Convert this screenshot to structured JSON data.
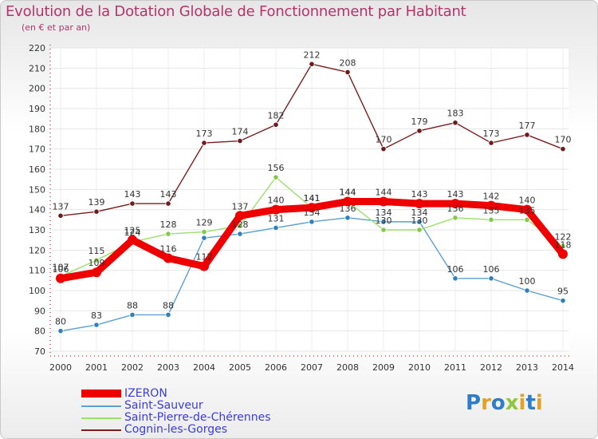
{
  "title": "Evolution de la Dotation Globale de Fonctionnement par Habitant",
  "subtitle": "(en € et par an)",
  "logo": [
    "P",
    "r",
    "o",
    "x",
    "i",
    "t",
    "i"
  ],
  "logo_colors": [
    "#2f7dc6",
    "#e3a125",
    "#2f7dc6",
    "#8dc63f",
    "#e3a125",
    "#2f7dc6",
    "#e3a125"
  ],
  "chart_data": {
    "type": "line",
    "title": "Evolution de la Dotation Globale de Fonctionnement par Habitant",
    "ylabel": "(en € et par an)",
    "xlabel": "",
    "x": [
      "2000",
      "2001",
      "2002",
      "2003",
      "2004",
      "2005",
      "2006",
      "2007",
      "2008",
      "2009",
      "2010",
      "2011",
      "2012",
      "2013",
      "2014"
    ],
    "ylim": [
      70,
      220
    ],
    "yticks": [
      "70",
      "80",
      "90",
      "100",
      "110",
      "120",
      "130",
      "140",
      "150",
      "160",
      "170",
      "180",
      "190",
      "200",
      "210",
      "220"
    ],
    "grid": true,
    "legend_position": "bottom-left",
    "series": [
      {
        "name": "Cognin-les-Gorges",
        "color": "#7a1e1e",
        "marker": "#6e1a1a",
        "values": [
          137,
          139,
          143,
          143,
          173,
          174,
          182,
          212,
          208,
          170,
          179,
          183,
          173,
          177,
          170
        ]
      },
      {
        "name": "Saint-Sauveur",
        "color": "#5d9fd0",
        "marker": "#2e7fc0",
        "values": [
          80,
          83,
          88,
          88,
          126,
          128,
          131,
          134,
          136,
          134,
          134,
          106,
          106,
          100,
          95
        ]
      },
      {
        "name": "Saint-Pierre-de-Chérennes",
        "color": "#9ae06a",
        "marker": "#83c84a",
        "values": [
          107,
          115,
          124,
          128,
          129,
          132,
          156,
          141,
          144,
          130,
          130,
          136,
          135,
          135,
          122
        ]
      },
      {
        "name": "IZERON",
        "color": "#ee0000",
        "marker": "#ee0000",
        "values": [
          106,
          109,
          125,
          116,
          112,
          137,
          140,
          141,
          144,
          144,
          143,
          143,
          142,
          140,
          118
        ]
      }
    ],
    "labels": [
      {
        "text": "137",
        "x": 0,
        "y": 137
      },
      {
        "text": "139",
        "x": 1,
        "y": 139
      },
      {
        "text": "143",
        "x": 2,
        "y": 143
      },
      {
        "text": "143",
        "x": 3,
        "y": 143
      },
      {
        "text": "173",
        "x": 4,
        "y": 173
      },
      {
        "text": "174",
        "x": 5,
        "y": 174
      },
      {
        "text": "182",
        "x": 6,
        "y": 182
      },
      {
        "text": "212",
        "x": 7,
        "y": 212
      },
      {
        "text": "208",
        "x": 8,
        "y": 208
      },
      {
        "text": "170",
        "x": 9,
        "y": 170
      },
      {
        "text": "179",
        "x": 10,
        "y": 179
      },
      {
        "text": "183",
        "x": 11,
        "y": 183
      },
      {
        "text": "173",
        "x": 12,
        "y": 173
      },
      {
        "text": "177",
        "x": 13,
        "y": 177
      },
      {
        "text": "170",
        "x": 14,
        "y": 170
      },
      {
        "text": "80",
        "x": 0,
        "y": 80
      },
      {
        "text": "83",
        "x": 1,
        "y": 83
      },
      {
        "text": "88",
        "x": 2,
        "y": 88
      },
      {
        "text": "88",
        "x": 3,
        "y": 88
      },
      {
        "text": "129",
        "x": 4,
        "y": 129
      },
      {
        "text": "131",
        "x": 6,
        "y": 131
      },
      {
        "text": "134",
        "x": 7,
        "y": 134
      },
      {
        "text": "136",
        "x": 8,
        "y": 136
      },
      {
        "text": "130",
        "x": 9,
        "y": 130
      },
      {
        "text": "130",
        "x": 10,
        "y": 130
      },
      {
        "text": "134",
        "x": 9,
        "y": 134
      },
      {
        "text": "134",
        "x": 10,
        "y": 134
      },
      {
        "text": "106",
        "x": 11,
        "y": 106
      },
      {
        "text": "106",
        "x": 12,
        "y": 106
      },
      {
        "text": "100",
        "x": 13,
        "y": 100
      },
      {
        "text": "95",
        "x": 14,
        "y": 95
      },
      {
        "text": "115",
        "x": 1,
        "y": 115
      },
      {
        "text": "124",
        "x": 2,
        "y": 124
      },
      {
        "text": "128",
        "x": 3,
        "y": 128
      },
      {
        "text": "128",
        "x": 5,
        "y": 128
      },
      {
        "text": "156",
        "x": 6,
        "y": 156
      },
      {
        "text": "136",
        "x": 11,
        "y": 136
      },
      {
        "text": "135",
        "x": 12,
        "y": 135
      },
      {
        "text": "135",
        "x": 13,
        "y": 135
      },
      {
        "text": "122",
        "x": 14,
        "y": 122
      },
      {
        "text": "107",
        "x": 0,
        "y": 107
      },
      {
        "text": "106",
        "x": 0,
        "y": 106
      },
      {
        "text": "109",
        "x": 1,
        "y": 109
      },
      {
        "text": "125",
        "x": 2,
        "y": 125
      },
      {
        "text": "116",
        "x": 3,
        "y": 116
      },
      {
        "text": "112",
        "x": 4,
        "y": 112
      },
      {
        "text": "137",
        "x": 5,
        "y": 137
      },
      {
        "text": "140",
        "x": 6,
        "y": 140
      },
      {
        "text": "141",
        "x": 7,
        "y": 141
      },
      {
        "text": "141",
        "x": 7,
        "y": 141
      },
      {
        "text": "144",
        "x": 8,
        "y": 144
      },
      {
        "text": "144",
        "x": 8,
        "y": 144
      },
      {
        "text": "144",
        "x": 9,
        "y": 144
      },
      {
        "text": "143",
        "x": 10,
        "y": 143
      },
      {
        "text": "143",
        "x": 11,
        "y": 143
      },
      {
        "text": "142",
        "x": 12,
        "y": 142
      },
      {
        "text": "140",
        "x": 13,
        "y": 140
      },
      {
        "text": "118",
        "x": 14,
        "y": 118
      }
    ],
    "legend": [
      {
        "name": "IZERON",
        "color": "#ee0000"
      },
      {
        "name": "Saint-Sauveur",
        "color": "#5d9fd0"
      },
      {
        "name": "Saint-Pierre-de-Chérennes",
        "color": "#9ae06a"
      },
      {
        "name": "Cognin-les-Gorges",
        "color": "#7a1e1e"
      }
    ]
  }
}
